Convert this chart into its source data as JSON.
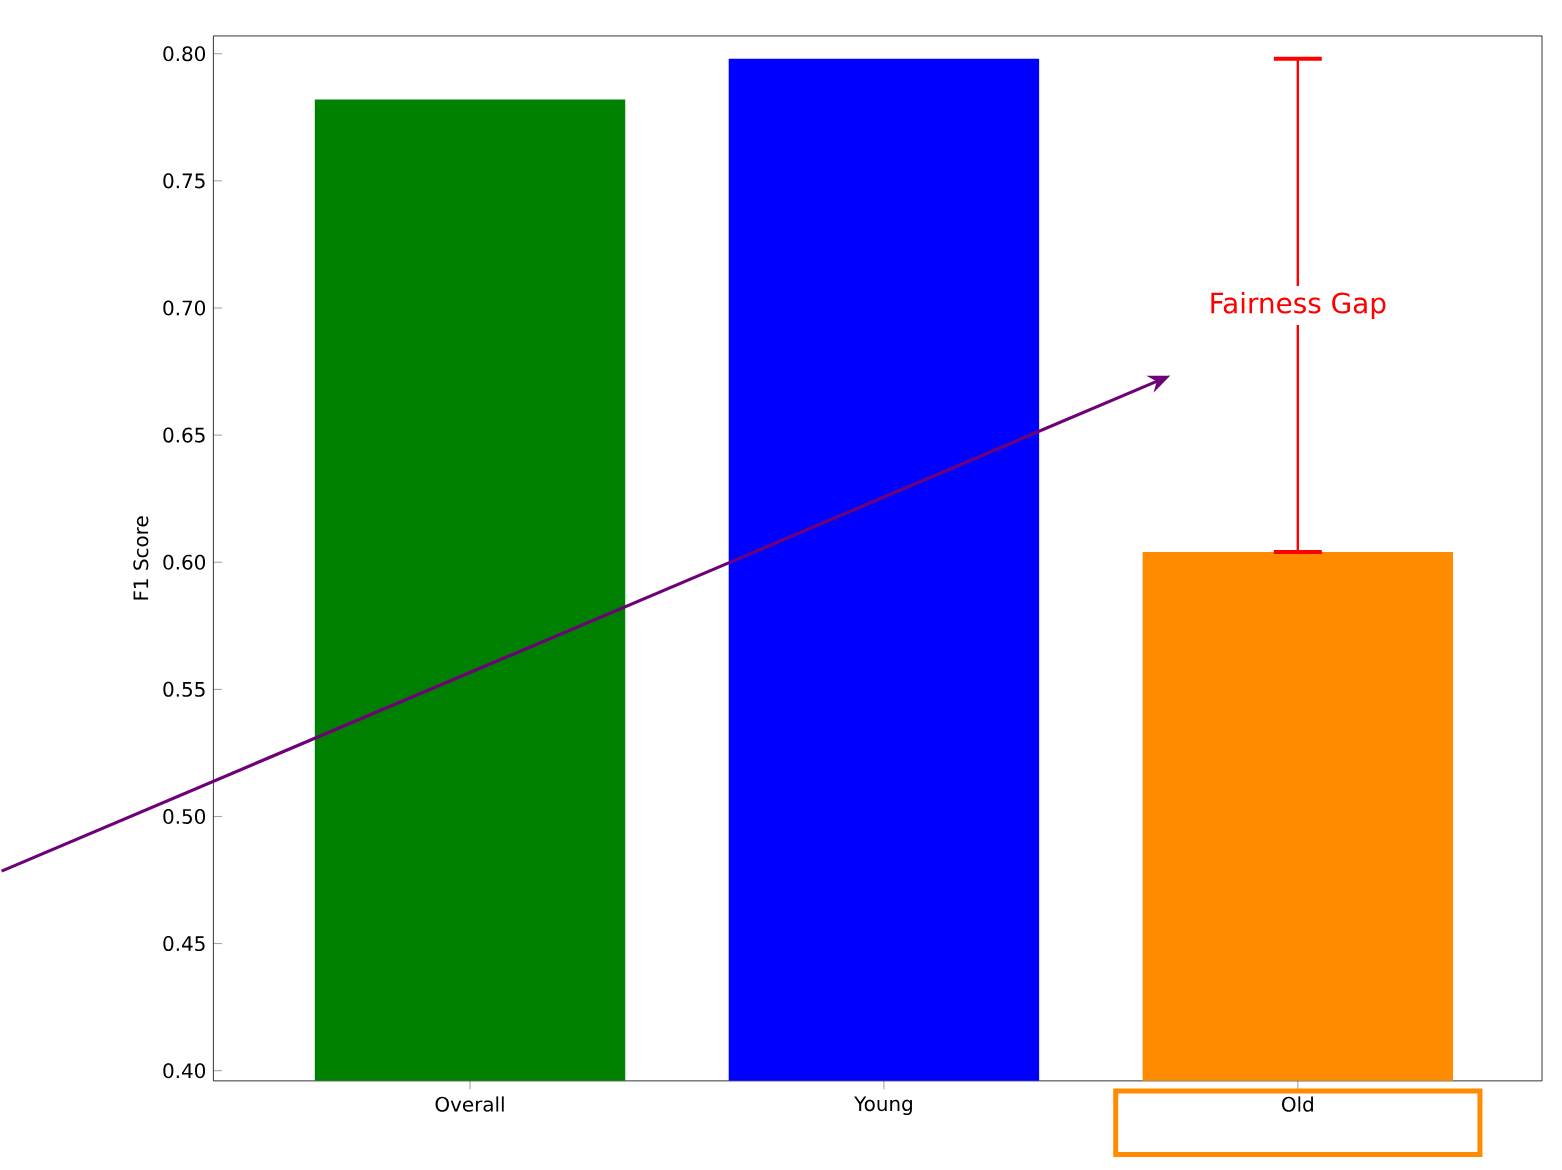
{
  "chart_data": {
    "type": "bar",
    "categories": [
      "Overall",
      "Young",
      "Old"
    ],
    "values": [
      0.782,
      0.798,
      0.604
    ],
    "colors": [
      "#008000",
      "#0000ff",
      "#ff8c00"
    ],
    "ylabel": "F1 Score",
    "ylim": [
      0.396,
      0.807
    ],
    "yticks": [
      {
        "value": 0.4,
        "label": "0.40"
      },
      {
        "value": 0.45,
        "label": "0.45"
      },
      {
        "value": 0.5,
        "label": "0.50"
      },
      {
        "value": 0.55,
        "label": "0.55"
      },
      {
        "value": 0.6,
        "label": "0.60"
      },
      {
        "value": 0.65,
        "label": "0.65"
      },
      {
        "value": 0.7,
        "label": "0.70"
      },
      {
        "value": 0.75,
        "label": "0.75"
      },
      {
        "value": 0.8,
        "label": "0.80"
      }
    ],
    "errors": [
      null,
      null,
      [
        0.604,
        0.798
      ]
    ],
    "annotations": [
      "Fairness Gap"
    ]
  }
}
